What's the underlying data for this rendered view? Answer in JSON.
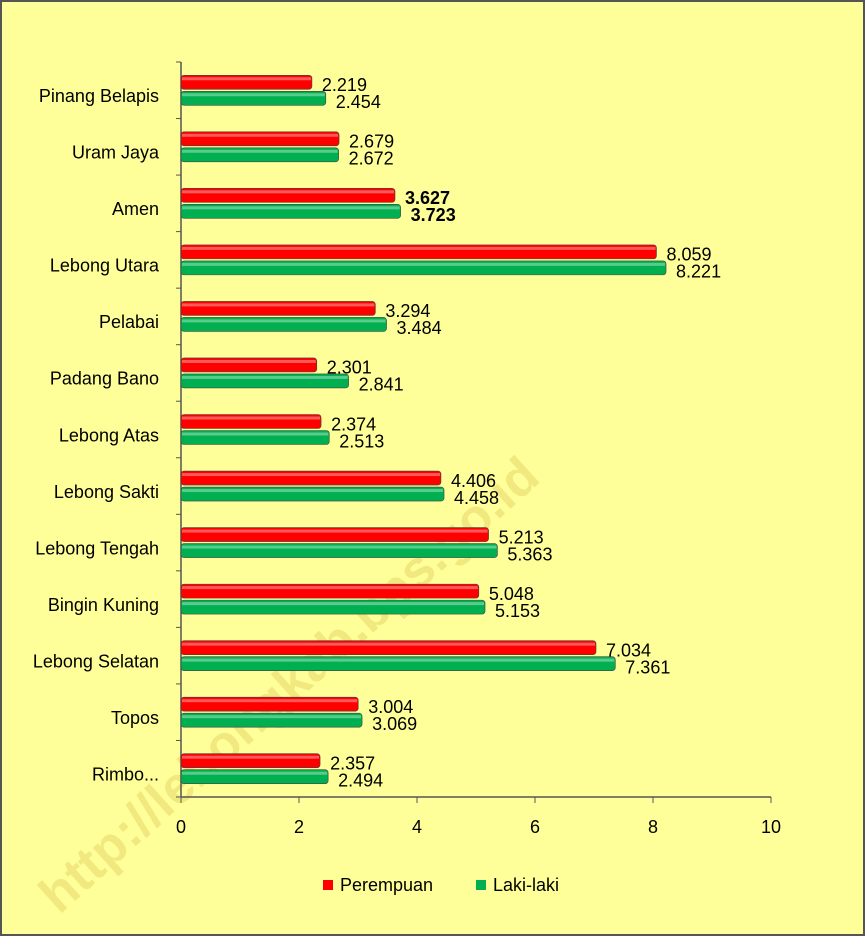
{
  "chart_data": {
    "type": "bar",
    "orientation": "horizontal",
    "watermark": "http://lebongkab.bps.go.id",
    "categories": [
      "Pinang Belapis",
      "Uram Jaya",
      "Amen",
      "Lebong Utara",
      "Pelabai",
      "Padang Bano",
      "Lebong Atas",
      "Lebong Sakti",
      "Lebong Tengah",
      "Bingin Kuning",
      "Lebong Selatan",
      "Topos",
      "Rimbo..."
    ],
    "series": [
      {
        "name": "Perempuan",
        "color": "#ff0000",
        "values": [
          2.219,
          2.679,
          3.627,
          8.059,
          3.294,
          2.301,
          2.374,
          4.406,
          5.213,
          5.048,
          7.034,
          3.004,
          2.357
        ]
      },
      {
        "name": "Laki-laki",
        "color": "#00b050",
        "values": [
          2.454,
          2.672,
          3.723,
          8.221,
          3.484,
          2.841,
          2.513,
          4.458,
          5.363,
          5.153,
          7.361,
          3.069,
          2.494
        ]
      }
    ],
    "xlim": [
      0,
      10
    ],
    "xticks": [
      0,
      2,
      4,
      6,
      8,
      10
    ],
    "legend": "bottom"
  }
}
